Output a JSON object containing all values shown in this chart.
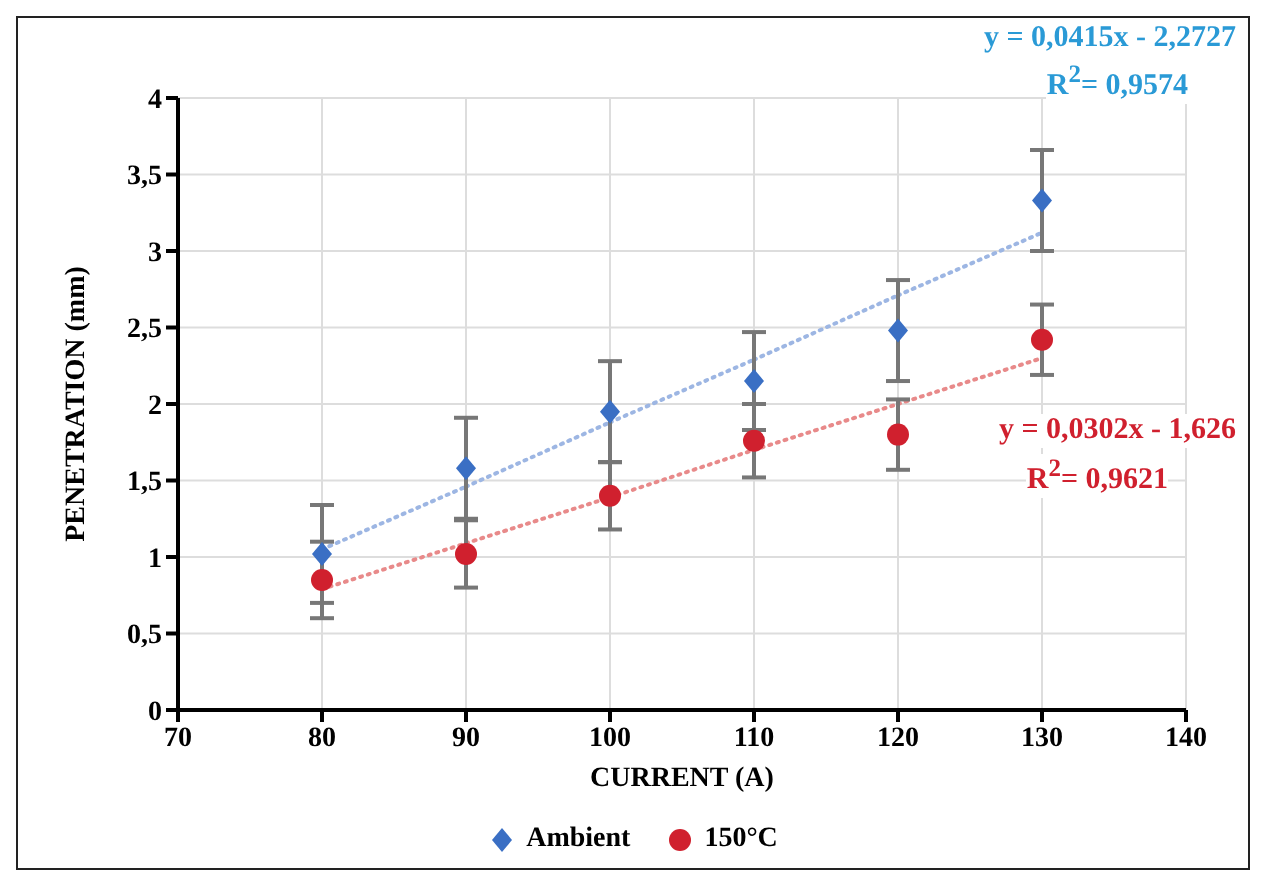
{
  "chart_data": {
    "type": "scatter",
    "xlabel": "CURRENT (A)",
    "ylabel": "PENETRATION (mm)",
    "x": [
      80,
      90,
      100,
      110,
      120,
      130
    ],
    "series": [
      {
        "name": "Ambient",
        "color": "#3a6fc4",
        "marker": "diamond",
        "values": [
          1.02,
          1.58,
          1.95,
          2.15,
          2.48,
          3.33
        ],
        "errors": [
          0.32,
          0.33,
          0.33,
          0.32,
          0.33,
          0.33
        ]
      },
      {
        "name": "150°C",
        "color": "#d0202e",
        "marker": "circle",
        "values": [
          0.85,
          1.02,
          1.4,
          1.76,
          1.8,
          2.42
        ],
        "errors": [
          0.25,
          0.22,
          0.22,
          0.24,
          0.23,
          0.23
        ]
      },
      {
        "type": "line",
        "color": "#9db6e3",
        "line_style": "dotted",
        "marker": "none",
        "values": [
          1.05,
          1.46,
          1.88,
          2.29,
          2.71,
          3.12
        ]
      },
      {
        "type": "line",
        "color": "#e88a8a",
        "line_style": "dotted",
        "marker": "none",
        "values": [
          0.79,
          1.09,
          1.39,
          1.7,
          2.0,
          2.3
        ]
      }
    ],
    "annotations": [
      "y = 0,0415x - 2,2727",
      "R$^{2}$= 0,9574",
      "y = 0,0302x - 1,626",
      "R$^{2}$= 0,9621"
    ],
    "xlim": [
      70,
      140
    ],
    "xticks": [
      70,
      80,
      90,
      100,
      110,
      120,
      130,
      140
    ],
    "ylim": [
      0,
      4
    ],
    "yticks": [
      0,
      {
        "value": 0.5,
        "label": "0,5"
      },
      1,
      {
        "value": 1.5,
        "label": "1,5"
      },
      2,
      {
        "value": 2.5,
        "label": "2,5"
      },
      3,
      {
        "value": 3.5,
        "label": "3,5"
      },
      4
    ],
    "grid": true,
    "legend": "bottom"
  }
}
